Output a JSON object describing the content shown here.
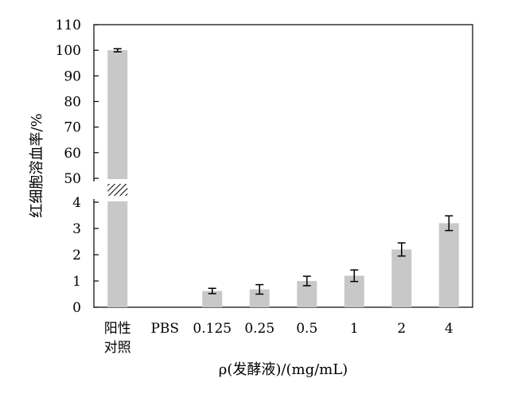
{
  "chart_data": {
    "type": "bar",
    "title": "",
    "xlabel": "ρ(发酵液)/(mg/mL)",
    "ylabel": "红细胞溶血率/%",
    "axis_break": true,
    "ylim_lower": [
      0,
      4
    ],
    "ylim_upper": [
      50,
      110
    ],
    "yticks_lower": [
      "0",
      "1",
      "2",
      "3",
      "4"
    ],
    "yticks_upper": [
      "50",
      "60",
      "70",
      "80",
      "90",
      "100",
      "110"
    ],
    "categories": [
      {
        "line1": "阳性",
        "line2": "对照"
      },
      {
        "line1": "PBS",
        "line2": ""
      },
      {
        "line1": "0.125",
        "line2": ""
      },
      {
        "line1": "0.25",
        "line2": ""
      },
      {
        "line1": "0.5",
        "line2": ""
      },
      {
        "line1": "1",
        "line2": ""
      },
      {
        "line1": "2",
        "line2": ""
      },
      {
        "line1": "4",
        "line2": ""
      }
    ],
    "values": [
      100,
      0,
      0.62,
      0.68,
      1.0,
      1.2,
      2.2,
      3.2
    ],
    "errors": [
      0.6,
      0,
      0.1,
      0.18,
      0.18,
      0.22,
      0.25,
      0.28
    ],
    "bar_color": "#c8c8c8",
    "grid": false
  }
}
